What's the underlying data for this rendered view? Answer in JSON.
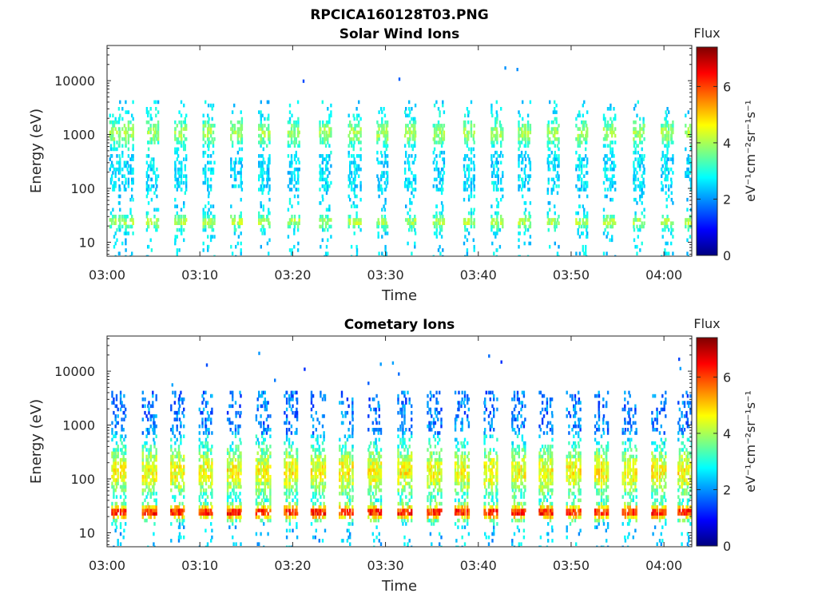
{
  "figure": {
    "title": "RPCICA160128T03.PNG"
  },
  "colorbar": {
    "stops": [
      "#00007f",
      "#0000ff",
      "#007fff",
      "#00ffff",
      "#7fff7f",
      "#ffff00",
      "#ff7f00",
      "#ff0000",
      "#7f0000"
    ]
  },
  "chart_data": [
    {
      "type": "heatmap",
      "title": "Solar Wind Ions",
      "xlabel": "Time",
      "ylabel": "Energy (eV)",
      "x_ticks": [
        "03:00",
        "03:10",
        "03:20",
        "03:30",
        "03:40",
        "03:50",
        "04:00"
      ],
      "xlim_minutes_after_0300": [
        0,
        63
      ],
      "y_scale": "log",
      "ylim": [
        5.5,
        45000
      ],
      "y_ticks": [
        "10",
        "100",
        "1000",
        "10000"
      ],
      "colorbar": {
        "label": "Flux",
        "units": "eV⁻¹cm⁻²sr⁻¹s⁻¹",
        "range": [
          0,
          7.4
        ],
        "ticks": [
          "0",
          "2",
          "4",
          "6"
        ]
      },
      "scans_minutes_after_0300": [
        0.2,
        1.6,
        4.2,
        7.2,
        10.3,
        13.3,
        16.3,
        19.5,
        22.8,
        26.0,
        29.0,
        32.0,
        35.1,
        38.3,
        41.3,
        44.3,
        47.4,
        50.5,
        53.5,
        56.6,
        59.7,
        62.3
      ],
      "band_note": "Flux mostly 2–4.5 across 15–2500 eV; strongest near 1000 eV and 20 eV"
    },
    {
      "type": "heatmap",
      "title": "Cometary Ions",
      "xlabel": "Time",
      "ylabel": "Energy (eV)",
      "x_ticks": [
        "03:00",
        "03:10",
        "03:20",
        "03:30",
        "03:40",
        "03:50",
        "04:00"
      ],
      "xlim_minutes_after_0300": [
        0,
        63
      ],
      "y_scale": "log",
      "ylim": [
        5.5,
        45000
      ],
      "y_ticks": [
        "10",
        "100",
        "1000",
        "10000"
      ],
      "colorbar": {
        "label": "Flux",
        "units": "eV⁻¹cm⁻²sr⁻¹s⁻¹",
        "range": [
          0,
          7.4
        ],
        "ticks": [
          "0",
          "2",
          "4",
          "6"
        ]
      },
      "scans_minutes_after_0300": [
        0.5,
        3.8,
        6.8,
        9.8,
        12.9,
        16.0,
        19.0,
        22.0,
        25.0,
        28.0,
        31.2,
        34.4,
        37.4,
        40.5,
        43.5,
        46.5,
        49.5,
        52.5,
        55.5,
        58.6,
        61.5
      ],
      "band_note": "Flux 4–6 around 100–200 eV; peaks 6–7 near 20–25 eV; sparse 1–2 up to 3000 eV"
    }
  ]
}
